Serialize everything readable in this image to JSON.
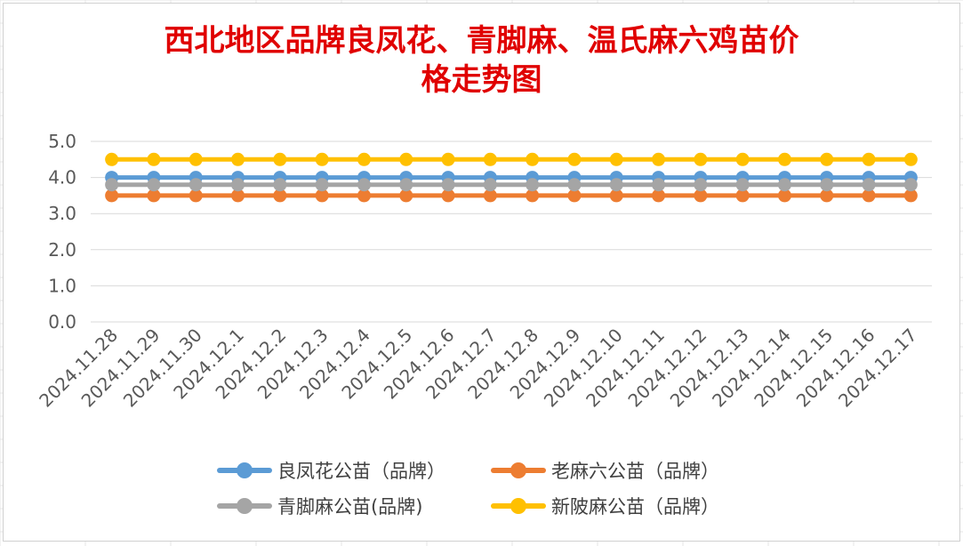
{
  "chart_data": {
    "type": "line",
    "title_line1": "西北地区品牌良凤花、青脚麻、温氏麻六鸡苗价",
    "title_line2": "格走势图",
    "categories": [
      "2024.11.28",
      "2024.11.29",
      "2024.11.30",
      "2024.12.1",
      "2024.12.2",
      "2024.12.3",
      "2024.12.4",
      "2024.12.5",
      "2024.12.6",
      "2024.12.7",
      "2024.12.8",
      "2024.12.9",
      "2024.12.10",
      "2024.12.11",
      "2024.12.12",
      "2024.12.13",
      "2024.12.14",
      "2024.12.15",
      "2024.12.16",
      "2024.12.17"
    ],
    "yticks": [
      "0.0",
      "1.0",
      "2.0",
      "3.0",
      "4.0",
      "5.0"
    ],
    "ylim": [
      0,
      5
    ],
    "grid": true,
    "legend_position": "bottom",
    "series": [
      {
        "name": "良凤花公苗（品牌）",
        "color": "#5b9bd5",
        "values": [
          4.0,
          4.0,
          4.0,
          4.0,
          4.0,
          4.0,
          4.0,
          4.0,
          4.0,
          4.0,
          4.0,
          4.0,
          4.0,
          4.0,
          4.0,
          4.0,
          4.0,
          4.0,
          4.0,
          4.0
        ]
      },
      {
        "name": "老麻六公苗（品牌）",
        "color": "#ed7d31",
        "values": [
          3.5,
          3.5,
          3.5,
          3.5,
          3.5,
          3.5,
          3.5,
          3.5,
          3.5,
          3.5,
          3.5,
          3.5,
          3.5,
          3.5,
          3.5,
          3.5,
          3.5,
          3.5,
          3.5,
          3.5
        ]
      },
      {
        "name": "青脚麻公苗(品牌)",
        "color": "#a5a5a5",
        "values": [
          3.8,
          3.8,
          3.8,
          3.8,
          3.8,
          3.8,
          3.8,
          3.8,
          3.8,
          3.8,
          3.8,
          3.8,
          3.8,
          3.8,
          3.8,
          3.8,
          3.8,
          3.8,
          3.8,
          3.8
        ]
      },
      {
        "name": "新陂麻公苗（品牌）",
        "color": "#ffc000",
        "values": [
          4.5,
          4.5,
          4.5,
          4.5,
          4.5,
          4.5,
          4.5,
          4.5,
          4.5,
          4.5,
          4.5,
          4.5,
          4.5,
          4.5,
          4.5,
          4.5,
          4.5,
          4.5,
          4.5,
          4.5
        ]
      }
    ]
  }
}
